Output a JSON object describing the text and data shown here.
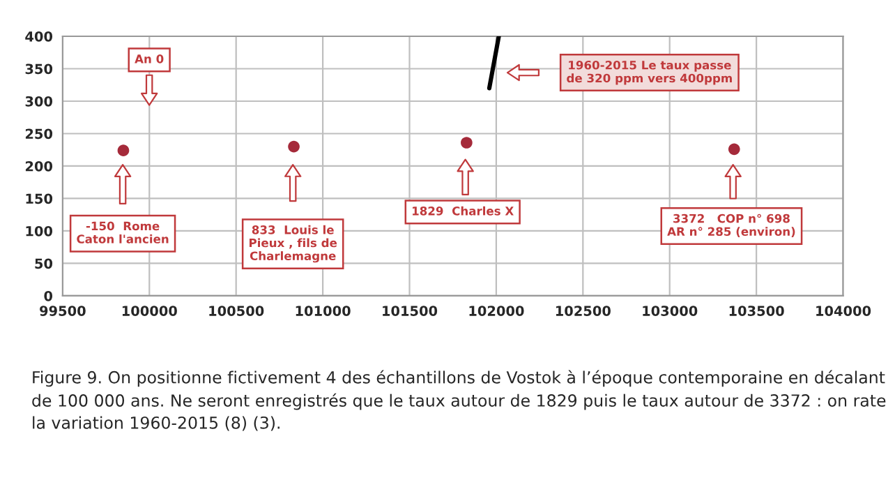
{
  "chart_data": {
    "type": "scatter",
    "series": [
      {
        "color": "#a52a3a",
        "marker": "circle",
        "x": [
          99850,
          100833,
          101829,
          103372
        ],
        "values": [
          224,
          230,
          236,
          226
        ]
      },
      {
        "type": "line",
        "color": "#000000",
        "x": [
          101960,
          102015
        ],
        "values": [
          320,
          400
        ]
      }
    ],
    "xlim": [
      99500,
      104000
    ],
    "xticks": [
      99500,
      100000,
      100500,
      101000,
      101500,
      102000,
      102500,
      103000,
      103500,
      104000
    ],
    "ylim": [
      0,
      400
    ],
    "yticks": [
      0,
      50,
      100,
      150,
      200,
      250,
      300,
      350,
      400
    ],
    "grid": true,
    "annotations": [
      "An 0",
      "-150  Rome\nCaton l'ancien",
      "833  Louis le\nPieux , fils de\nCharlemagne",
      "1829  Charles X",
      "3372   COP n° 698\nAR n° 285 (environ)",
      "1960-2015 Le taux passe\nde 320 ppm vers 400ppm",
      "Figure 9. On positionne fictivement 4 des échantillons de Vostok à l’époque contemporaine en décalant de 100 000 ans. Ne seront enregistrés que le taux autour de 1829 puis le taux autour de 3372 : on rate la variation 1960-2015 (8) (3)."
    ]
  }
}
